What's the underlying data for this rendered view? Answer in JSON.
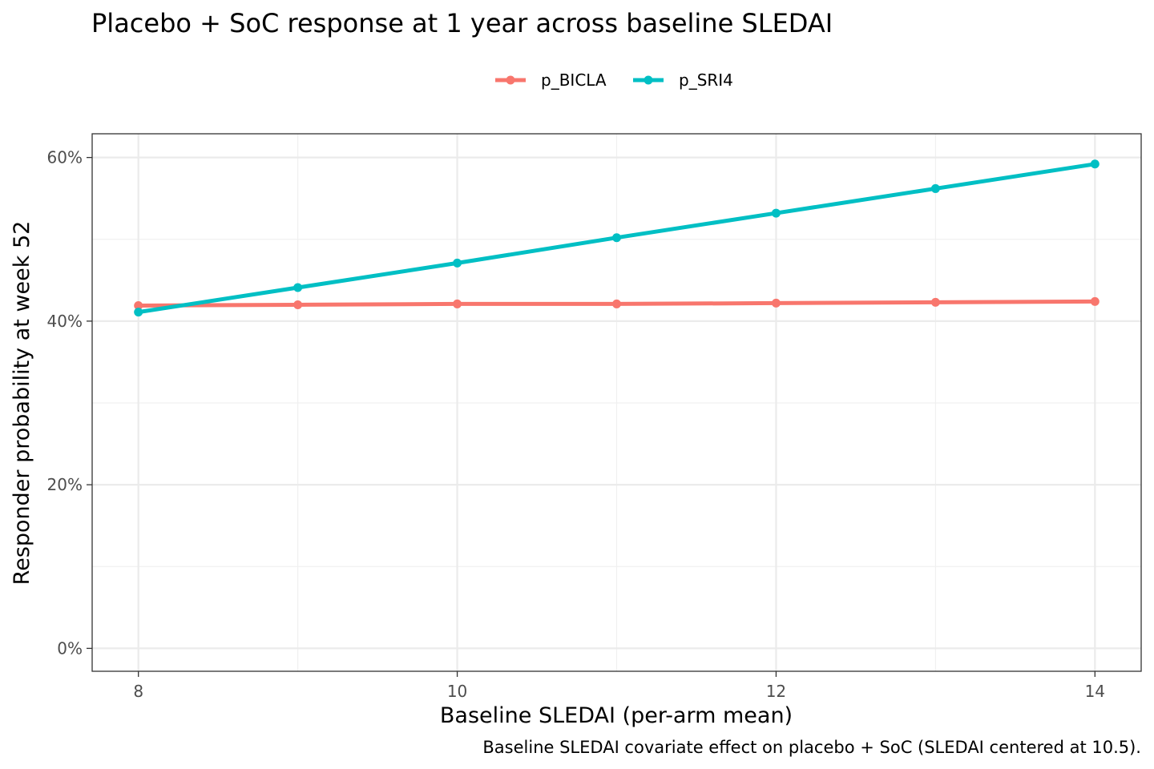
{
  "chart_data": {
    "type": "line",
    "title": "Placebo + SoC response at 1 year across baseline SLEDAI",
    "xlabel": "Baseline SLEDAI (per-arm mean)",
    "ylabel": "Responder probability at week 52",
    "caption": "Baseline SLEDAI covariate effect on placebo + SoC (SLEDAI centered at 10.5).",
    "x": [
      8,
      9,
      10,
      11,
      12,
      13,
      14
    ],
    "xlim": [
      7.71,
      14.29
    ],
    "ylim": [
      -0.028,
      0.629
    ],
    "x_ticks": [
      8,
      10,
      12,
      14
    ],
    "x_tick_labels": [
      "8",
      "10",
      "12",
      "14"
    ],
    "y_ticks": [
      0,
      0.2,
      0.4,
      0.6
    ],
    "y_tick_labels": [
      "0%",
      "20%",
      "40%",
      "60%"
    ],
    "grid": true,
    "legend_position": "top",
    "series": [
      {
        "name": "p_BICLA",
        "color": "#F8766D",
        "values": [
          0.419,
          0.42,
          0.421,
          0.421,
          0.422,
          0.423,
          0.424
        ]
      },
      {
        "name": "p_SRI4",
        "color": "#00BFC4",
        "values": [
          0.411,
          0.441,
          0.471,
          0.502,
          0.532,
          0.562,
          0.592
        ]
      }
    ]
  }
}
